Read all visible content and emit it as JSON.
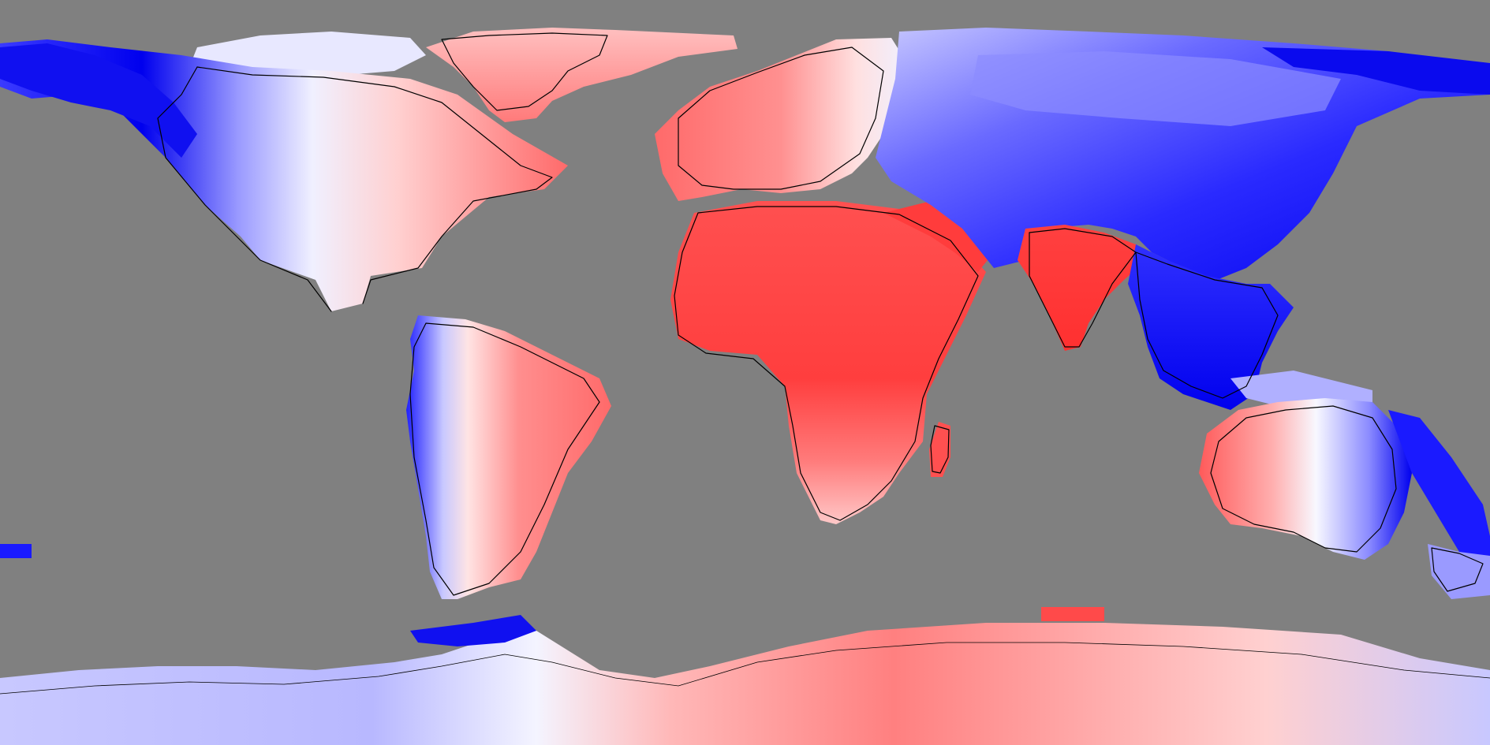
{
  "map": {
    "projection": "equirectangular",
    "background_color": "#808080",
    "colors": {
      "strong_blue": "#0000ee",
      "mid_blue": "#6a6aff",
      "light_blue": "#c8c8ff",
      "white": "#f8f8ff",
      "light_red": "#ffc8c8",
      "mid_red": "#ff7a7a",
      "strong_red": "#ff3a3a",
      "coastline": "#000000"
    },
    "regions": [
      {
        "name": "western-north-america",
        "tone": "strong_blue"
      },
      {
        "name": "eastern-north-america",
        "tone": "mid_red"
      },
      {
        "name": "greenland",
        "tone": "mid_red"
      },
      {
        "name": "western-south-america",
        "tone": "strong_blue"
      },
      {
        "name": "eastern-south-america",
        "tone": "mid_red"
      },
      {
        "name": "africa",
        "tone": "strong_red"
      },
      {
        "name": "europe",
        "tone": "mid_red"
      },
      {
        "name": "northern-asia",
        "tone": "mid_blue"
      },
      {
        "name": "southeast-asia",
        "tone": "strong_blue"
      },
      {
        "name": "india",
        "tone": "strong_red"
      },
      {
        "name": "western-australia",
        "tone": "mid_red"
      },
      {
        "name": "eastern-australia",
        "tone": "strong_blue"
      },
      {
        "name": "west-antarctica",
        "tone": "light_blue"
      },
      {
        "name": "east-antarctica",
        "tone": "mid_red"
      }
    ]
  }
}
